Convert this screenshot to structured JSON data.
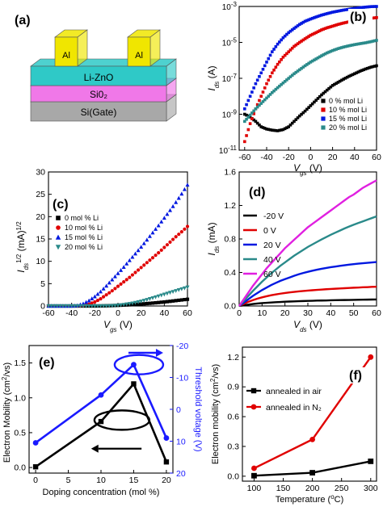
{
  "figure": {
    "device_panel": "(a)"
  },
  "device": {
    "layers": [
      "Li-ZnO",
      "Si0₂",
      "Si(Gate)"
    ],
    "electrode_left": "Al",
    "electrode_right": "Al",
    "colors": {
      "electrode": "#f0e600",
      "lizno": "#2fc9c7",
      "sio2": "#f078e8",
      "si": "#a8a8a8"
    }
  },
  "chart_data": [
    {
      "panel": "(b)",
      "type": "scatter",
      "xlabel": "V_gs (V)",
      "ylabel": "I_ds (A)",
      "yscale": "log",
      "xlim": [
        -65,
        60
      ],
      "ylim": [
        1e-11,
        0.001
      ],
      "xticks": [
        "-60",
        "-40",
        "-20",
        "0",
        "20",
        "40",
        "60"
      ],
      "yticks": [
        "10^-11",
        "10^-9",
        "10^-7",
        "10^-5",
        "10^-3"
      ],
      "legend_position": "bottom-right",
      "x": [
        -60,
        -55,
        -50,
        -45,
        -40,
        -35,
        -30,
        -25,
        -20,
        -15,
        -10,
        -5,
        0,
        5,
        10,
        15,
        20,
        25,
        30,
        35,
        40,
        45,
        50,
        55,
        60
      ],
      "series": [
        {
          "name": "0 % mol Li",
          "color": "#000000",
          "values": [
            1e-09,
            7e-10,
            4e-10,
            2e-10,
            1.5e-10,
            1.3e-10,
            1.2e-10,
            1.4e-10,
            2e-10,
            4e-10,
            8e-10,
            1.5e-09,
            3e-09,
            6e-09,
            1.2e-08,
            2.2e-08,
            4e-08,
            6e-08,
            9e-08,
            1.3e-07,
            1.8e-07,
            2.5e-07,
            3.3e-07,
            4.2e-07,
            5e-07
          ]
        },
        {
          "name": "10 % mol Li",
          "color": "#e00000",
          "values": [
            3e-11,
            3e-10,
            2e-09,
            1e-08,
            5e-08,
            2e-07,
            6e-07,
            1.5e-06,
            3e-06,
            6e-06,
            1e-05,
            1.6e-05,
            2.5e-05,
            3.5e-05,
            5e-05,
            6.5e-05,
            8e-05,
            0.0001,
            0.00012,
            0.00014,
            0.00016,
            0.00018,
            0.0002,
            0.00022,
            0.00024
          ]
        },
        {
          "name": "15 % mol Li",
          "color": "#0018e0",
          "values": [
            2e-09,
            1e-08,
            5e-08,
            2e-07,
            8e-07,
            3e-06,
            8e-06,
            1.8e-05,
            3.5e-05,
            6e-05,
            0.0001,
            0.00015,
            0.0002,
            0.00026,
            0.00033,
            0.0004,
            0.00048,
            0.00055,
            0.00063,
            0.0007,
            0.00078,
            0.00085,
            0.00092,
            0.00098,
            0.001
          ]
        },
        {
          "name": "20 % mol Li",
          "color": "#2a8a8a",
          "values": [
            4e-10,
            9e-10,
            2e-09,
            4e-09,
            8e-09,
            1.6e-08,
            3e-08,
            5.5e-08,
            1e-07,
            1.8e-07,
            3e-07,
            5e-07,
            8e-07,
            1.2e-06,
            1.8e-06,
            2.6e-06,
            3.5e-06,
            4.5e-06,
            5.5e-06,
            6.5e-06,
            7.5e-06,
            8.5e-06,
            9.5e-06,
            1.1e-05,
            1.3e-05
          ]
        }
      ]
    },
    {
      "panel": "(c)",
      "type": "scatter",
      "xlabel": "V_gs (V)",
      "ylabel": "I_ds^1/2 (mA)^1/2",
      "xlim": [
        -60,
        60
      ],
      "ylim": [
        0,
        30
      ],
      "xticks": [
        "-60",
        "-40",
        "-20",
        "0",
        "20",
        "40",
        "60"
      ],
      "yticks": [
        "0",
        "5",
        "10",
        "15",
        "20",
        "25",
        "30"
      ],
      "legend_position": "top-left",
      "x": [
        -60,
        -55,
        -50,
        -45,
        -40,
        -35,
        -30,
        -25,
        -20,
        -15,
        -10,
        -5,
        0,
        5,
        10,
        15,
        20,
        25,
        30,
        35,
        40,
        45,
        50,
        55,
        60
      ],
      "series": [
        {
          "name": "0 mol % Li",
          "color": "#000000",
          "values": [
            0,
            0,
            0,
            0,
            0,
            0,
            0,
            0,
            0,
            0.02,
            0.05,
            0.09,
            0.14,
            0.2,
            0.27,
            0.35,
            0.44,
            0.54,
            0.65,
            0.77,
            0.9,
            1.04,
            1.2,
            1.35,
            1.5
          ]
        },
        {
          "name": "10 mol % Li",
          "color": "#e00000",
          "values": [
            0,
            0,
            0,
            0,
            0,
            0,
            0.1,
            0.4,
            0.9,
            1.6,
            2.5,
            3.4,
            4.4,
            5.4,
            6.4,
            7.5,
            8.6,
            9.7,
            10.8,
            11.9,
            13.1,
            14.3,
            15.5,
            16.6,
            17.8
          ]
        },
        {
          "name": "15 mol % Li",
          "color": "#0018e0",
          "values": [
            0,
            0,
            0,
            0,
            0,
            0.1,
            0.5,
            1.2,
            2.1,
            3.2,
            4.5,
            5.9,
            7.3,
            8.7,
            10.2,
            11.7,
            13.2,
            14.8,
            16.4,
            18.0,
            19.7,
            21.4,
            23.2,
            25.1,
            27.1
          ]
        },
        {
          "name": "20 mol % Li",
          "color": "#2a8a8a",
          "values": [
            0,
            0,
            0,
            0,
            0,
            0,
            0,
            0,
            0,
            0,
            0,
            0.05,
            0.15,
            0.3,
            0.5,
            0.75,
            1.05,
            1.4,
            1.8,
            2.2,
            2.6,
            3.0,
            3.4,
            3.8,
            4.2
          ]
        }
      ]
    },
    {
      "panel": "(d)",
      "type": "line",
      "xlabel": "V_ds (V)",
      "ylabel": "I_ds (mA)",
      "xlim": [
        0,
        60
      ],
      "ylim": [
        0,
        1.6
      ],
      "xticks": [
        "0",
        "10",
        "20",
        "30",
        "40",
        "50",
        "60"
      ],
      "yticks": [
        "0.0",
        "0.4",
        "0.8",
        "1.2",
        "1.6"
      ],
      "legend_position": "top-left",
      "x": [
        0,
        2,
        4,
        6,
        8,
        10,
        12,
        14,
        16,
        18,
        20,
        22,
        24,
        26,
        28,
        30,
        32,
        34,
        36,
        38,
        40,
        42,
        44,
        46,
        48,
        50,
        52,
        54,
        56,
        58,
        60
      ],
      "series": [
        {
          "name": "-20 V",
          "color": "#000000",
          "values": [
            0,
            0.008,
            0.016,
            0.023,
            0.029,
            0.034,
            0.038,
            0.042,
            0.045,
            0.048,
            0.051,
            0.053,
            0.055,
            0.057,
            0.059,
            0.061,
            0.062,
            0.064,
            0.065,
            0.066,
            0.068,
            0.069,
            0.07,
            0.071,
            0.072,
            0.073,
            0.074,
            0.075,
            0.076,
            0.077,
            0.078
          ]
        },
        {
          "name": "0 V",
          "color": "#e00000",
          "values": [
            0,
            0.025,
            0.05,
            0.07,
            0.088,
            0.103,
            0.116,
            0.128,
            0.138,
            0.147,
            0.155,
            0.162,
            0.168,
            0.174,
            0.179,
            0.184,
            0.188,
            0.192,
            0.196,
            0.2,
            0.203,
            0.206,
            0.209,
            0.212,
            0.215,
            0.218,
            0.22,
            0.223,
            0.225,
            0.228,
            0.23
          ]
        },
        {
          "name": "20 V",
          "color": "#0018e0",
          "values": [
            0,
            0.04,
            0.08,
            0.12,
            0.155,
            0.19,
            0.22,
            0.25,
            0.275,
            0.3,
            0.32,
            0.34,
            0.36,
            0.378,
            0.394,
            0.408,
            0.421,
            0.433,
            0.444,
            0.454,
            0.463,
            0.471,
            0.479,
            0.486,
            0.493,
            0.499,
            0.505,
            0.51,
            0.515,
            0.52,
            0.525
          ]
        },
        {
          "name": "40 V",
          "color": "#2a8a8a",
          "values": [
            0,
            0.06,
            0.12,
            0.18,
            0.235,
            0.29,
            0.34,
            0.39,
            0.435,
            0.48,
            0.52,
            0.56,
            0.6,
            0.635,
            0.67,
            0.705,
            0.735,
            0.765,
            0.795,
            0.822,
            0.85,
            0.875,
            0.9,
            0.925,
            0.948,
            0.97,
            0.99,
            1.01,
            1.03,
            1.05,
            1.07
          ]
        },
        {
          "name": "60 V",
          "color": "#e020e0",
          "values": [
            0,
            0.08,
            0.16,
            0.24,
            0.31,
            0.38,
            0.45,
            0.51,
            0.57,
            0.63,
            0.69,
            0.74,
            0.79,
            0.84,
            0.89,
            0.94,
            0.98,
            1.02,
            1.06,
            1.1,
            1.14,
            1.18,
            1.22,
            1.26,
            1.3,
            1.33,
            1.37,
            1.41,
            1.44,
            1.47,
            1.5
          ]
        }
      ]
    },
    {
      "panel": "(e)",
      "type": "line",
      "xlabel": "Doping concentration (mol %)",
      "ylabel": "Electron Mobility (cm²/vs)",
      "ylabel_right": "Threshold voltage (V)",
      "xlim": [
        -1,
        21
      ],
      "ylim": [
        -0.08,
        1.75
      ],
      "ylim_right": [
        20,
        -20
      ],
      "xticks": [
        "0",
        "5",
        "10",
        "15",
        "20"
      ],
      "yticks": [
        "0.0",
        "0.5",
        "1.0",
        "1.5"
      ],
      "yticks_right": [
        "20",
        "10",
        "0",
        "-10",
        "-20"
      ],
      "x": [
        0,
        10,
        15,
        20
      ],
      "series": [
        {
          "name": "Electron Mobility",
          "axis": "left",
          "color": "#000000",
          "values": [
            0.01,
            0.66,
            1.2,
            0.08
          ]
        },
        {
          "name": "Threshold voltage",
          "axis": "right",
          "color": "#1a1aff",
          "values": [
            10.5,
            -4.5,
            -14,
            9
          ]
        }
      ]
    },
    {
      "panel": "(f)",
      "type": "line",
      "xlabel": "Temperature (°C)",
      "ylabel": "Electron mobility (cm²/vs)",
      "xlim": [
        80,
        310
      ],
      "ylim": [
        -0.05,
        1.3
      ],
      "xticks": [
        "100",
        "150",
        "200",
        "250",
        "300"
      ],
      "yticks": [
        "0.0",
        "0.3",
        "0.6",
        "0.9",
        "1.2"
      ],
      "legend_position": "top-left",
      "x": [
        100,
        200,
        300
      ],
      "series": [
        {
          "name": "annealed in air",
          "color": "#000000",
          "values": [
            0.005,
            0.035,
            0.15
          ]
        },
        {
          "name": "annealed in N₂",
          "color": "#e00000",
          "values": [
            0.08,
            0.37,
            1.2
          ]
        }
      ]
    }
  ]
}
